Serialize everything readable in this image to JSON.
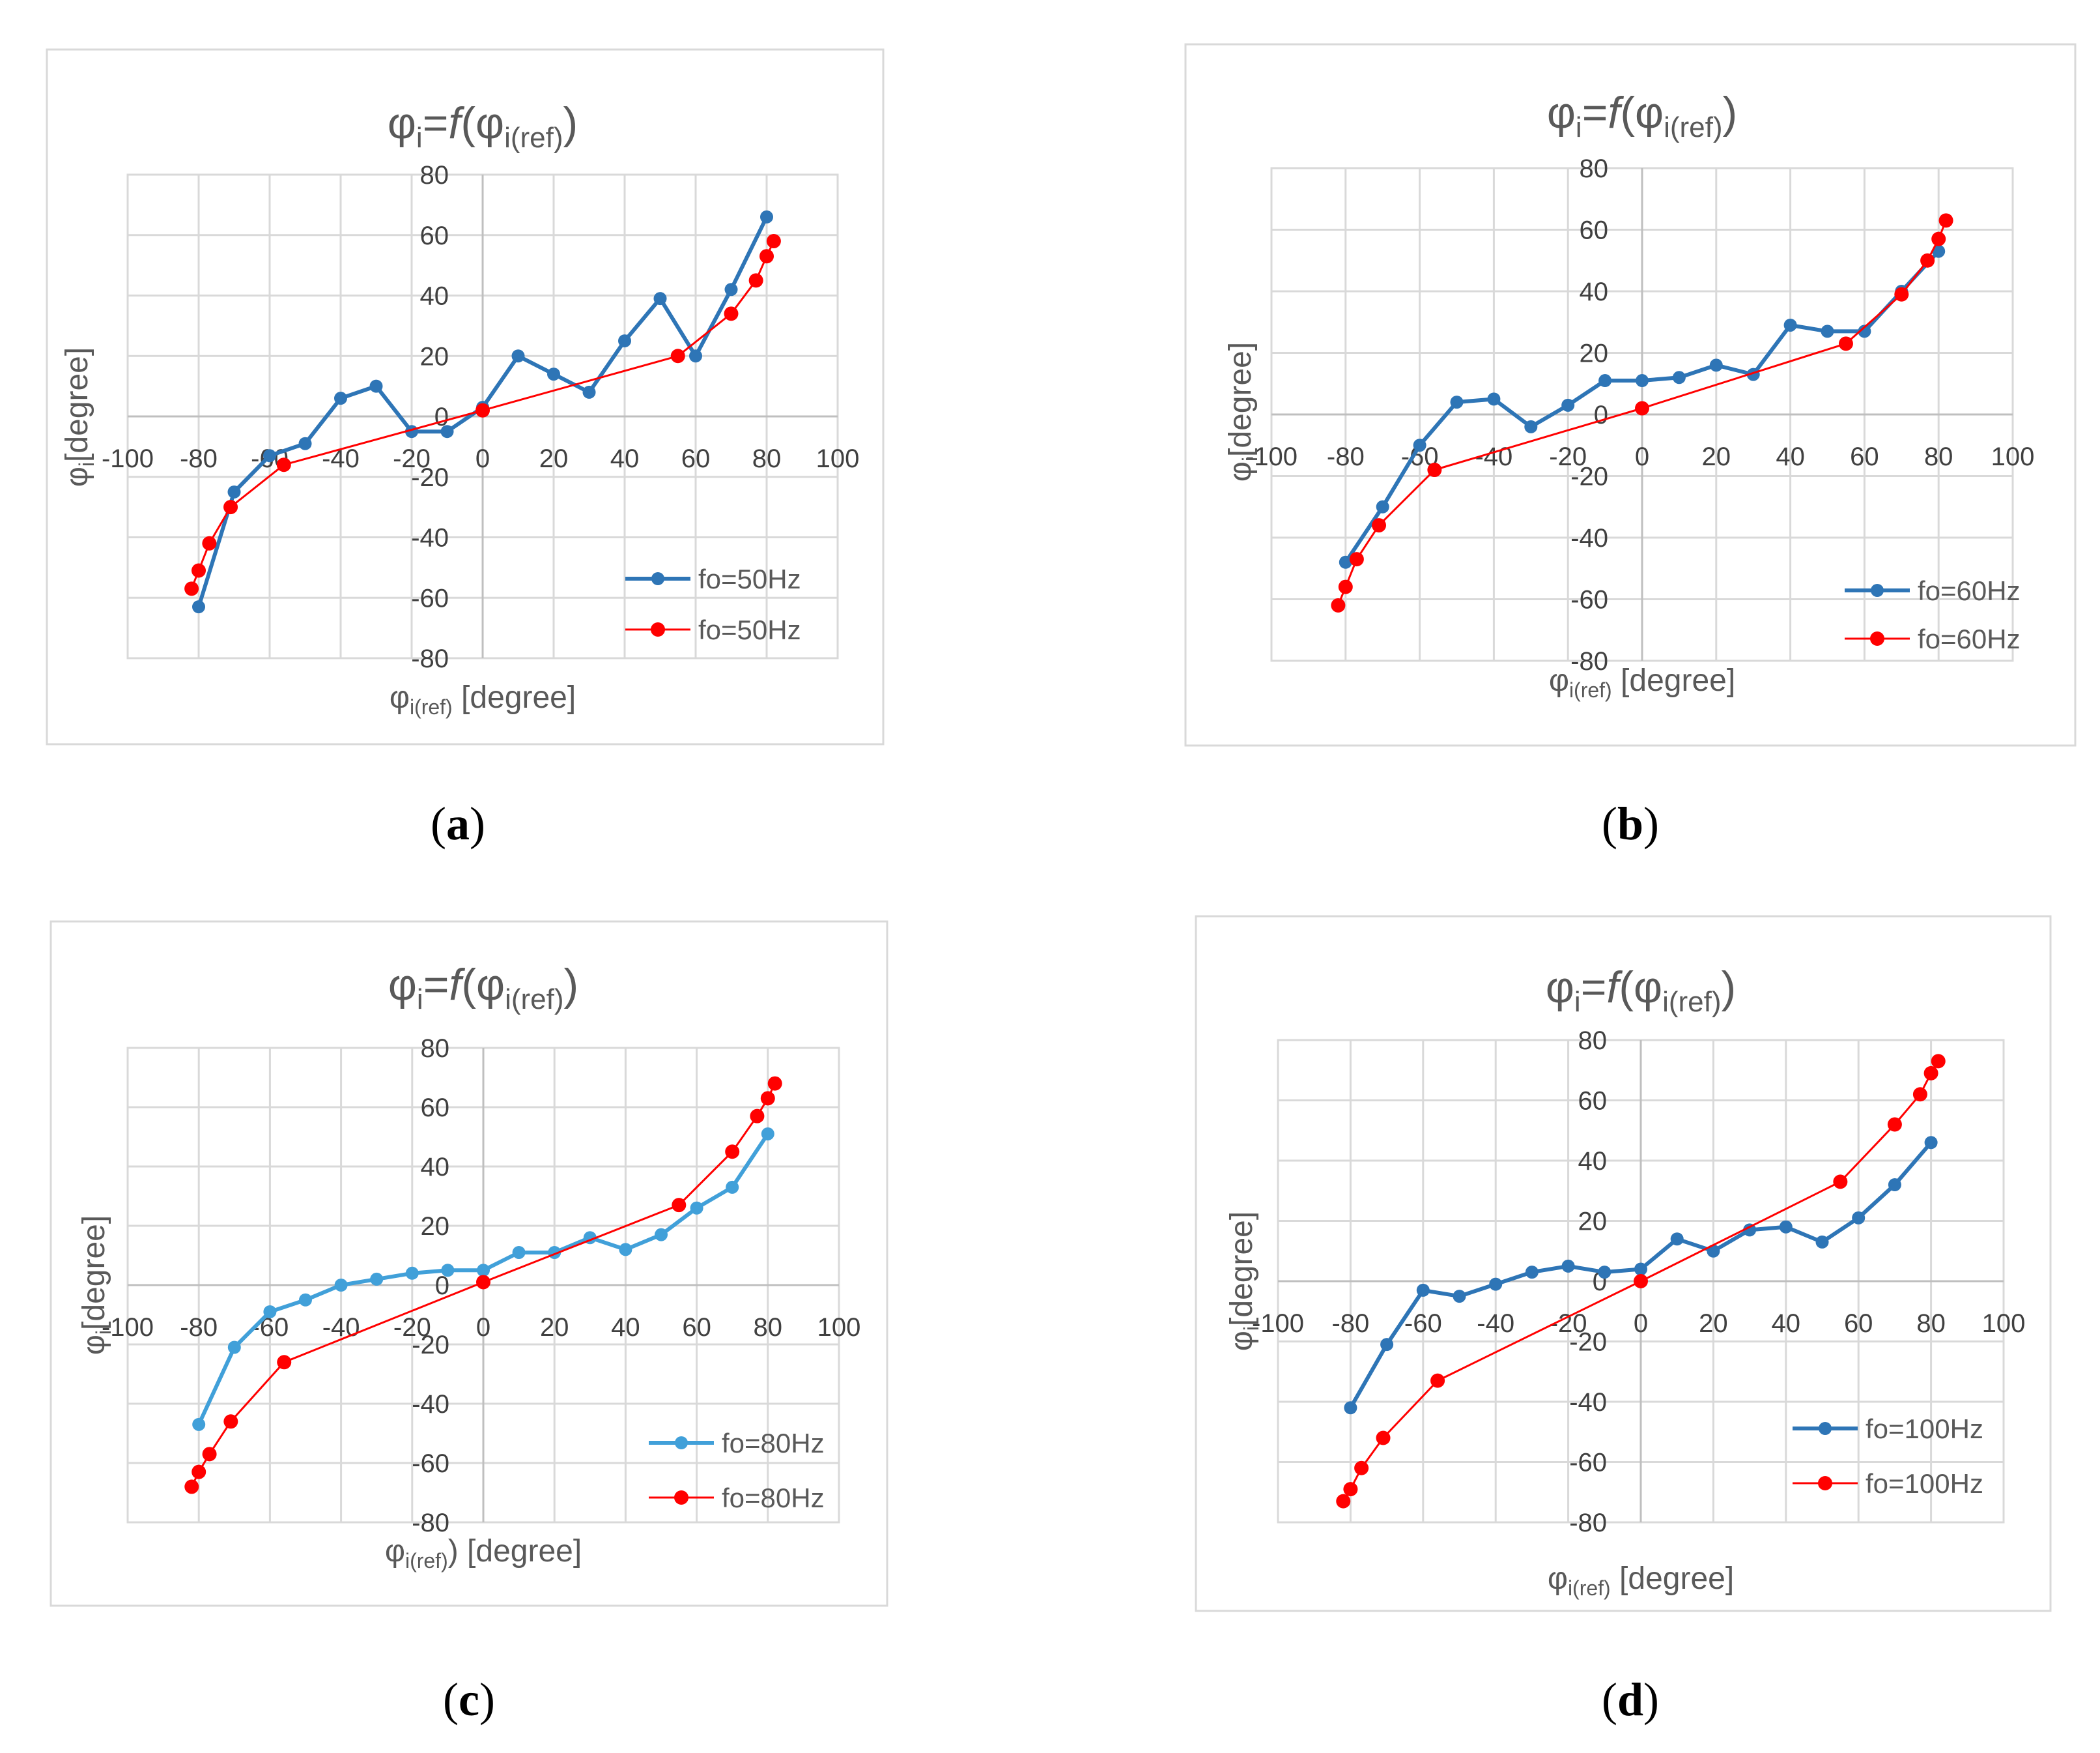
{
  "chart_data": [
    {
      "type": "line",
      "panel_label": "a",
      "title": {
        "base": "φi=f(φ",
        "sub": "i(ref)",
        "close": ")"
      },
      "xlabel": {
        "base": "φ",
        "sub": "i(ref)",
        "rest": " [degree]"
      },
      "ylabel": {
        "base": "φ",
        "sub": "i",
        "rest": "[degree]"
      },
      "xlim": [
        -100,
        100
      ],
      "ylim": [
        -80,
        80
      ],
      "xticks": [
        -100,
        -80,
        -60,
        -40,
        -20,
        0,
        20,
        40,
        60,
        80,
        100
      ],
      "yticks": [
        80,
        60,
        40,
        20,
        0,
        -20,
        -40,
        -60,
        -80
      ],
      "grid": true,
      "legend_position": "bottom-right",
      "series": [
        {
          "name": "fo=50Hz",
          "color": "#2e75b6",
          "x": [
            -80,
            -70,
            -60,
            -50,
            -40,
            -30,
            -20,
            -10,
            0,
            10,
            20,
            30,
            40,
            50,
            60,
            70,
            80
          ],
          "y": [
            -63,
            -25,
            -13,
            -9,
            6,
            10,
            -5,
            -5,
            3,
            20,
            14,
            8,
            25,
            39,
            20,
            42,
            66
          ]
        },
        {
          "name": "fo=50Hz",
          "color": "#ff0000",
          "x": [
            -82,
            -80,
            -77,
            -71,
            -56,
            0,
            55,
            70,
            77,
            80,
            82
          ],
          "y": [
            -57,
            -51,
            -42,
            -30,
            -16,
            2,
            20,
            34,
            45,
            53,
            58
          ]
        }
      ]
    },
    {
      "type": "line",
      "panel_label": "b",
      "title": {
        "base": "φi=f(φ",
        "sub": "i(ref)",
        "close": ")"
      },
      "xlabel": {
        "base": "φ",
        "sub": "i(ref)",
        "rest": " [degree]"
      },
      "ylabel": {
        "base": "φ",
        "sub": "i",
        "rest": "[degree]"
      },
      "xlim": [
        -100,
        100
      ],
      "ylim": [
        -80,
        80
      ],
      "xticks": [
        -100,
        -80,
        -60,
        -40,
        -20,
        0,
        20,
        40,
        60,
        80,
        100
      ],
      "yticks": [
        80,
        60,
        40,
        20,
        0,
        -20,
        -40,
        -60,
        -80
      ],
      "grid": true,
      "legend_position": "bottom-right",
      "series": [
        {
          "name": "fo=60Hz",
          "color": "#2e75b6",
          "x": [
            -80,
            -70,
            -60,
            -50,
            -40,
            -30,
            -20,
            -10,
            0,
            10,
            20,
            30,
            40,
            50,
            60,
            70,
            80
          ],
          "y": [
            -48,
            -30,
            -10,
            4,
            5,
            -4,
            3,
            11,
            11,
            12,
            16,
            13,
            29,
            27,
            27,
            40,
            53
          ]
        },
        {
          "name": "fo=60Hz",
          "color": "#ff0000",
          "x": [
            -82,
            -80,
            -77,
            -71,
            -56,
            0,
            55,
            70,
            77,
            80,
            82
          ],
          "y": [
            -62,
            -56,
            -47,
            -36,
            -18,
            2,
            23,
            39,
            50,
            57,
            63
          ]
        }
      ]
    },
    {
      "type": "line",
      "panel_label": "c",
      "title": {
        "base": "φi=f(φ",
        "sub": "i(ref)",
        "close": ")"
      },
      "xlabel": {
        "base": "φ",
        "sub": "i(ref)",
        "rest": ") [degree]"
      },
      "ylabel": {
        "base": "φ",
        "sub": "i",
        "rest": "[degree]"
      },
      "xlim": [
        -100,
        100
      ],
      "ylim": [
        -80,
        80
      ],
      "xticks": [
        -100,
        -80,
        -60,
        -40,
        -20,
        0,
        20,
        40,
        60,
        80,
        100
      ],
      "yticks": [
        80,
        60,
        40,
        20,
        0,
        -20,
        -40,
        -60,
        -80
      ],
      "grid": true,
      "legend_position": "bottom-right",
      "series": [
        {
          "name": "fo=80Hz",
          "color": "#41a0d9",
          "x": [
            -80,
            -70,
            -60,
            -50,
            -40,
            -30,
            -20,
            -10,
            0,
            10,
            20,
            30,
            40,
            50,
            60,
            70,
            80
          ],
          "y": [
            -47,
            -21,
            -9,
            -5,
            0,
            2,
            4,
            5,
            5,
            11,
            11,
            16,
            12,
            17,
            26,
            33,
            51
          ]
        },
        {
          "name": "fo=80Hz",
          "color": "#ff0000",
          "x": [
            -82,
            -80,
            -77,
            -71,
            -56,
            0,
            55,
            70,
            77,
            80,
            82
          ],
          "y": [
            -68,
            -63,
            -57,
            -46,
            -26,
            1,
            27,
            45,
            57,
            63,
            68
          ]
        }
      ]
    },
    {
      "type": "line",
      "panel_label": "d",
      "title": {
        "base": "φi=f(φ",
        "sub": "i(ref)",
        "close": ")"
      },
      "xlabel": {
        "base": "φ",
        "sub": "i(ref)",
        "rest": " [degree]"
      },
      "ylabel": {
        "base": "φ",
        "sub": "i",
        "rest": "[degree]"
      },
      "xlim": [
        -100,
        100
      ],
      "ylim": [
        -80,
        80
      ],
      "xticks": [
        -100,
        -80,
        -60,
        -40,
        -20,
        0,
        20,
        40,
        60,
        80,
        100
      ],
      "yticks": [
        80,
        60,
        40,
        20,
        0,
        -20,
        -40,
        -60,
        -80
      ],
      "grid": true,
      "legend_position": "bottom-right",
      "series": [
        {
          "name": "fo=100Hz",
          "color": "#2e75b6",
          "x": [
            -80,
            -70,
            -60,
            -50,
            -40,
            -30,
            -20,
            -10,
            0,
            10,
            20,
            30,
            40,
            50,
            60,
            70,
            80
          ],
          "y": [
            -42,
            -21,
            -3,
            -5,
            -1,
            3,
            5,
            3,
            4,
            14,
            10,
            17,
            18,
            13,
            21,
            32,
            46
          ]
        },
        {
          "name": "fo=100Hz",
          "color": "#ff0000",
          "x": [
            -82,
            -80,
            -77,
            -71,
            -56,
            0,
            55,
            70,
            77,
            80,
            82
          ],
          "y": [
            -73,
            -69,
            -62,
            -52,
            -33,
            0,
            33,
            52,
            62,
            69,
            73
          ]
        }
      ]
    }
  ]
}
